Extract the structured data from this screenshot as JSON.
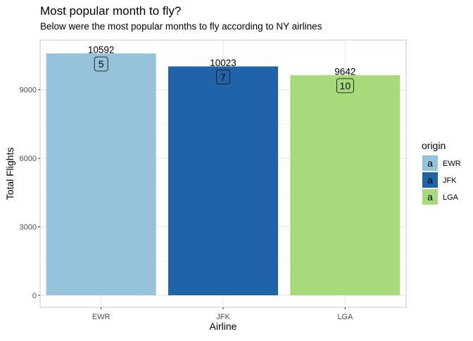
{
  "chart_data": {
    "type": "bar",
    "title": "Most popular month to fly?",
    "subtitle": "Below were the most popular months to fly according to NY airlines",
    "xlabel": "Airline",
    "ylabel": "Total Flights",
    "categories": [
      "EWR",
      "JFK",
      "LGA"
    ],
    "values": [
      10592,
      10023,
      9642
    ],
    "month_labels": [
      "5",
      "7",
      "10"
    ],
    "colors": [
      "#96C3DC",
      "#1F64A8",
      "#A6DA7A"
    ],
    "ylim": [
      0,
      10592
    ],
    "yticks": [
      0,
      3000,
      6000,
      9000
    ],
    "grid": true,
    "legend": {
      "title": "origin",
      "position": "right",
      "key_glyph": "a",
      "entries": [
        "EWR",
        "JFK",
        "LGA"
      ]
    }
  }
}
